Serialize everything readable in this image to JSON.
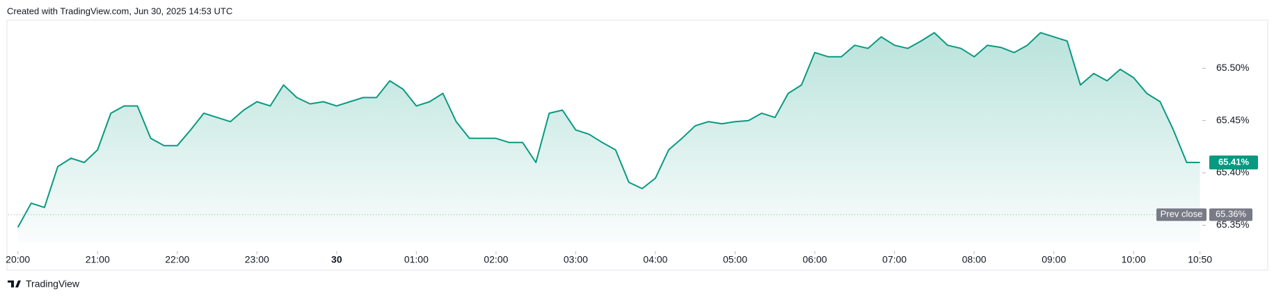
{
  "header": "Created with TradingView.com, Jun 30, 2025 14:53 UTC",
  "footer": "TradingView",
  "chart_data": {
    "type": "area",
    "color": "#089981",
    "x": [
      "20:00",
      "20:10",
      "20:20",
      "20:30",
      "20:40",
      "20:50",
      "21:00",
      "21:10",
      "21:20",
      "21:30",
      "21:40",
      "21:50",
      "22:00",
      "22:10",
      "22:20",
      "22:30",
      "22:40",
      "22:50",
      "23:00",
      "23:10",
      "23:20",
      "23:30",
      "23:40",
      "23:50",
      "00:00",
      "00:10",
      "00:20",
      "00:30",
      "00:40",
      "00:50",
      "01:00",
      "01:10",
      "01:20",
      "01:30",
      "01:40",
      "01:50",
      "02:00",
      "02:10",
      "02:20",
      "02:30",
      "02:40",
      "02:50",
      "03:00",
      "03:10",
      "03:20",
      "03:30",
      "03:40",
      "03:50",
      "04:00",
      "04:10",
      "04:20",
      "04:30",
      "04:40",
      "04:50",
      "05:00",
      "05:10",
      "05:20",
      "05:30",
      "05:40",
      "05:50",
      "06:00",
      "06:10",
      "06:20",
      "06:30",
      "06:40",
      "06:50",
      "07:00",
      "07:10",
      "07:20",
      "07:30",
      "07:40",
      "07:50",
      "08:00",
      "08:10",
      "08:20",
      "08:30",
      "08:40",
      "08:50",
      "09:00",
      "09:10",
      "09:20",
      "09:30",
      "09:40",
      "09:50",
      "10:00",
      "10:10",
      "10:20",
      "10:30",
      "10:40",
      "10:50"
    ],
    "values": [
      65.348,
      65.371,
      65.367,
      65.406,
      65.414,
      65.41,
      65.422,
      65.457,
      65.464,
      65.464,
      65.433,
      65.426,
      65.426,
      65.441,
      65.457,
      65.453,
      65.449,
      65.46,
      65.468,
      65.464,
      65.484,
      65.472,
      65.466,
      65.468,
      65.464,
      65.468,
      65.472,
      65.472,
      65.488,
      65.48,
      65.464,
      65.468,
      65.476,
      65.449,
      65.433,
      65.433,
      65.433,
      65.429,
      65.429,
      65.41,
      65.457,
      65.46,
      65.441,
      65.437,
      65.429,
      65.422,
      65.391,
      65.385,
      65.395,
      65.422,
      65.433,
      65.445,
      65.449,
      65.447,
      65.449,
      65.45,
      65.457,
      65.453,
      65.476,
      65.484,
      65.515,
      65.511,
      65.511,
      65.522,
      65.519,
      65.53,
      65.522,
      65.519,
      65.526,
      65.534,
      65.522,
      65.519,
      65.511,
      65.522,
      65.52,
      65.515,
      65.522,
      65.534,
      65.53,
      65.526,
      65.484,
      65.495,
      65.488,
      65.499,
      65.491,
      65.476,
      65.468,
      65.441,
      65.41,
      65.41
    ],
    "last_value_label": "65.41%",
    "ylim": [
      65.333,
      65.546
    ],
    "yticks": [
      {
        "value": 65.35,
        "label": "65.35%"
      },
      {
        "value": 65.4,
        "label": "65.40%"
      },
      {
        "value": 65.45,
        "label": "65.45%"
      },
      {
        "value": 65.5,
        "label": "65.50%"
      }
    ],
    "xticks": [
      "20:00",
      "21:00",
      "22:00",
      "23:00",
      {
        "value": "00:00",
        "label": "30"
      },
      "01:00",
      "02:00",
      "03:00",
      "04:00",
      "05:00",
      "06:00",
      "07:00",
      "08:00",
      "09:00",
      "10:00",
      "10:50"
    ],
    "prev_close": 65.36,
    "prev_close_label": "65.36%",
    "prev_close_title": "Prev close"
  }
}
